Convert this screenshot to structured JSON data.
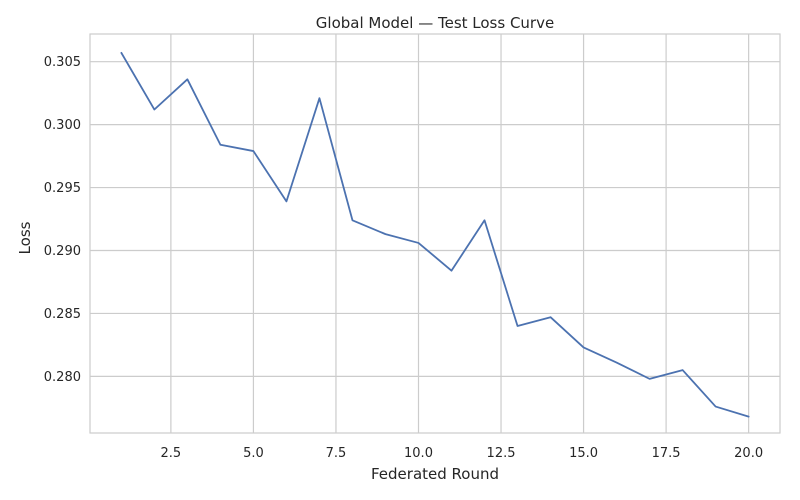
{
  "chart_data": {
    "type": "line",
    "title": "Global Model — Test Loss Curve",
    "xlabel": "Federated Round",
    "ylabel": "Loss",
    "xlim": [
      0.05,
      20.95
    ],
    "ylim": [
      0.2755,
      0.3072
    ],
    "xticks": [
      2.5,
      5.0,
      7.5,
      10.0,
      12.5,
      15.0,
      17.5,
      20.0
    ],
    "xtick_labels": [
      "2.5",
      "5.0",
      "7.5",
      "10.0",
      "12.5",
      "15.0",
      "17.5",
      "20.0"
    ],
    "yticks": [
      0.28,
      0.285,
      0.29,
      0.295,
      0.3,
      0.305
    ],
    "ytick_labels": [
      "0.280",
      "0.285",
      "0.290",
      "0.295",
      "0.300",
      "0.305"
    ],
    "grid": true,
    "legend": "none",
    "series": [
      {
        "color": "#4c72b0",
        "x": [
          1,
          2,
          3,
          4,
          5,
          6,
          7,
          8,
          9,
          10,
          11,
          12,
          13,
          14,
          15,
          16,
          17,
          18,
          19,
          20
        ],
        "y": [
          0.3057,
          0.3012,
          0.3036,
          0.2984,
          0.2979,
          0.2939,
          0.3021,
          0.2924,
          0.2913,
          0.2906,
          0.2884,
          0.2924,
          0.284,
          0.2847,
          0.2823,
          0.2811,
          0.2798,
          0.2805,
          0.2776,
          0.2768
        ]
      }
    ]
  }
}
